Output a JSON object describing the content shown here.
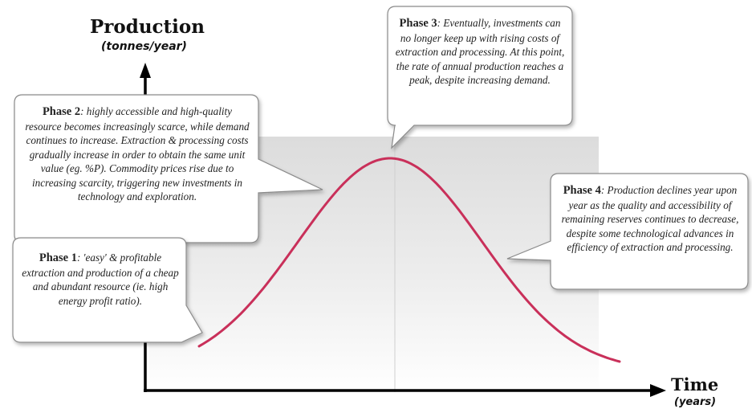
{
  "y_axis": {
    "title": "Production",
    "unit": "(tonnes/year)"
  },
  "x_axis": {
    "title": "Time",
    "unit": "(years)"
  },
  "colors": {
    "curve": "#c9305a",
    "shade": "#e6e6e6",
    "axis": "#000000",
    "bubble_border": "#8a8a8a"
  },
  "phases": [
    {
      "label": "Phase 1",
      "text": ": 'easy' & profitable extraction and production of a cheap and abundant resource (ie. high energy profit ratio)."
    },
    {
      "label": "Phase 2",
      "text": ": highly accessible and high-quality resource becomes increasingly scarce, while demand continues to increase. Extraction & processing costs gradually increase in order to obtain the same unit value (eg. %P). Commodity prices rise due to increasing scarcity, triggering new investments in technology and exploration."
    },
    {
      "label": "Phase 3",
      "text": ": Eventually, investments can no longer keep up with rising costs of extraction and processing. At this point, the rate of annual production reaches a peak, despite increasing demand."
    },
    {
      "label": "Phase 4",
      "text": ": Production declines year upon year as the quality and accessibility of remaining reserves continues to decrease, despite some technological advances in efficiency of extraction and processing."
    }
  ]
}
